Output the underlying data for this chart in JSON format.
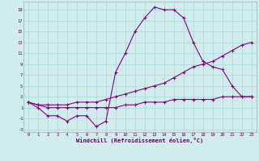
{
  "xlabel": "Windchill (Refroidissement éolien,°C)",
  "bg_color": "#d0ecec",
  "grid_color": "#aadddd",
  "line_color": "#880088",
  "xlim": [
    -0.5,
    23.5
  ],
  "ylim": [
    -3.5,
    20.5
  ],
  "xticks": [
    0,
    1,
    2,
    3,
    4,
    5,
    6,
    7,
    8,
    9,
    10,
    11,
    12,
    13,
    14,
    15,
    16,
    17,
    18,
    19,
    20,
    21,
    22,
    23
  ],
  "yticks": [
    -3,
    -1,
    1,
    3,
    5,
    7,
    9,
    11,
    13,
    15,
    17,
    19
  ],
  "curve1_x": [
    0,
    1,
    2,
    3,
    4,
    5,
    6,
    7,
    8,
    9,
    10,
    11,
    12,
    13,
    14,
    15,
    16,
    17,
    18,
    19,
    20,
    21,
    22,
    23
  ],
  "curve1_y": [
    2,
    1,
    -0.5,
    -0.5,
    -1.5,
    -0.5,
    -0.5,
    -2.5,
    -1.5,
    7.5,
    11,
    15,
    17.5,
    19.5,
    19,
    19,
    17.5,
    13,
    9.5,
    8.5,
    8,
    5,
    3,
    3
  ],
  "curve2_x": [
    0,
    1,
    2,
    3,
    4,
    5,
    6,
    7,
    8,
    9,
    10,
    11,
    12,
    13,
    14,
    15,
    16,
    17,
    18,
    19,
    20,
    21,
    22,
    23
  ],
  "curve2_y": [
    2,
    1.5,
    1.5,
    1.5,
    1.5,
    2,
    2,
    2,
    2.5,
    3,
    3.5,
    4,
    4.5,
    5,
    5.5,
    6.5,
    7.5,
    8.5,
    9,
    9.5,
    10.5,
    11.5,
    12.5,
    13
  ],
  "curve3_x": [
    0,
    1,
    2,
    3,
    4,
    5,
    6,
    7,
    8,
    9,
    10,
    11,
    12,
    13,
    14,
    15,
    16,
    17,
    18,
    19,
    20,
    21,
    22,
    23
  ],
  "curve3_y": [
    2,
    1.5,
    1,
    1,
    1,
    1,
    1,
    1,
    1,
    1,
    1.5,
    1.5,
    2,
    2,
    2,
    2.5,
    2.5,
    2.5,
    2.5,
    2.5,
    3,
    3,
    3,
    3
  ]
}
